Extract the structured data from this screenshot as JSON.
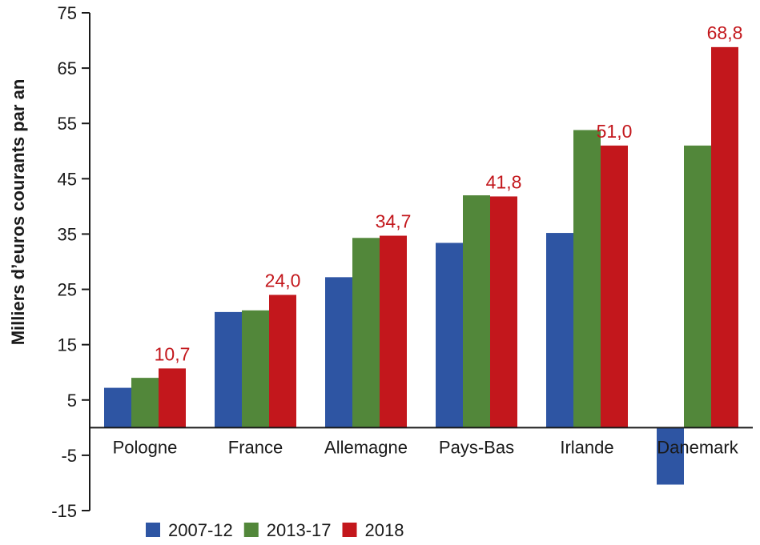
{
  "chart_data": {
    "type": "bar",
    "ylabel": "Milliers d’euros courants par an",
    "ylim": [
      -15,
      75
    ],
    "yticks": [
      75,
      65,
      55,
      45,
      35,
      25,
      15,
      5,
      -5,
      -15
    ],
    "ytick_labels": [
      "75",
      "65",
      "55",
      "45",
      "35",
      "25",
      "15",
      "5",
      "-5",
      "-15"
    ],
    "categories": [
      "Pologne",
      "France",
      "Allemagne",
      "Pays-Bas",
      "Irlande",
      "Danemark"
    ],
    "series": [
      {
        "name": "2007-12",
        "color": "#2e55a3",
        "values": [
          7.2,
          20.9,
          27.2,
          33.4,
          35.2,
          -10.3
        ]
      },
      {
        "name": "2013-17",
        "color": "#52873a",
        "values": [
          9.0,
          21.2,
          34.3,
          42.0,
          53.8,
          51.0
        ]
      },
      {
        "name": "2018",
        "color": "#c3171c",
        "values": [
          10.7,
          24.0,
          34.7,
          41.8,
          51.0,
          68.8
        ]
      }
    ],
    "data_labels": {
      "series": "2018",
      "color": "#c3171c",
      "texts": [
        "10,7",
        "24,0",
        "34,7",
        "41,8",
        "51,0",
        "68,8"
      ]
    },
    "legend_position": "bottom-left",
    "grid": false
  }
}
